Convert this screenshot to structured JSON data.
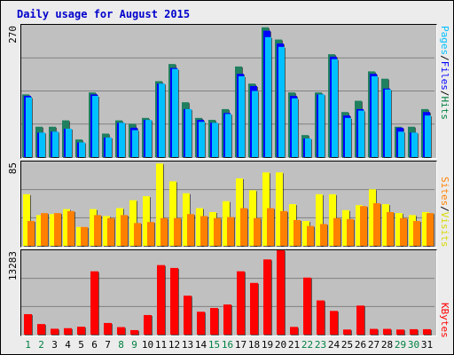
{
  "title": "Daily usage for August 2015",
  "colors": {
    "pages": "#00c0ff",
    "pages_dark": "#0060a0",
    "files": "#0000ff",
    "hits": "#008040",
    "hits_bar": "#1f8060",
    "sites": "#ff8000",
    "visits": "#ffff00",
    "kbytes": "#ff0000",
    "weekend_day": "#008040",
    "weekday": "#000000",
    "panel_bg": "#c0c0c0",
    "grid": "#808080"
  },
  "legend": {
    "hits_panel": [
      "Pages",
      "/",
      "Files",
      "/",
      "Hits"
    ],
    "visits_panel": [
      "Sites",
      "/",
      "Visits"
    ],
    "kbytes_panel": [
      "KBytes"
    ]
  },
  "chart_data": [
    {
      "type": "bar",
      "title": "",
      "ymax_label": "270",
      "ylim": [
        0,
        270
      ],
      "grid": true,
      "categories": [
        "1",
        "2",
        "3",
        "4",
        "5",
        "6",
        "7",
        "8",
        "9",
        "10",
        "11",
        "12",
        "13",
        "14",
        "15",
        "16",
        "17",
        "18",
        "19",
        "20",
        "21",
        "22",
        "23",
        "24",
        "25",
        "26",
        "27",
        "28",
        "29",
        "30",
        "31"
      ],
      "series": [
        {
          "name": "Hits",
          "values": [
            128,
            62,
            62,
            75,
            36,
            132,
            48,
            75,
            68,
            80,
            155,
            190,
            112,
            80,
            76,
            98,
            185,
            150,
            265,
            240,
            132,
            45,
            132,
            210,
            92,
            115,
            175,
            160,
            62,
            62,
            98
          ]
        },
        {
          "name": "Files",
          "values": [
            125,
            50,
            52,
            58,
            30,
            128,
            40,
            70,
            60,
            76,
            150,
            182,
            98,
            76,
            70,
            90,
            170,
            145,
            258,
            232,
            125,
            38,
            128,
            205,
            85,
            98,
            170,
            140,
            60,
            50,
            92
          ]
        },
        {
          "name": "Pages",
          "values": [
            122,
            50,
            52,
            58,
            30,
            125,
            40,
            70,
            55,
            76,
            150,
            180,
            98,
            72,
            70,
            88,
            165,
            135,
            245,
            225,
            120,
            38,
            128,
            200,
            80,
            95,
            165,
            138,
            52,
            50,
            85
          ]
        }
      ]
    },
    {
      "type": "bar",
      "title": "",
      "ymax_label": "85",
      "ylim": [
        0,
        85
      ],
      "grid": true,
      "categories": [
        "1",
        "2",
        "3",
        "4",
        "5",
        "6",
        "7",
        "8",
        "9",
        "10",
        "11",
        "12",
        "13",
        "14",
        "15",
        "16",
        "17",
        "18",
        "19",
        "20",
        "21",
        "22",
        "23",
        "24",
        "25",
        "26",
        "27",
        "28",
        "29",
        "30",
        "31"
      ],
      "series": [
        {
          "name": "Visits",
          "values": [
            52,
            31,
            32,
            37,
            19,
            37,
            30,
            38,
            46,
            50,
            83,
            65,
            53,
            38,
            34,
            45,
            68,
            56,
            74,
            74,
            42,
            25,
            52,
            52,
            36,
            41,
            57,
            42,
            33,
            31,
            34
          ]
        },
        {
          "name": "Sites",
          "values": [
            25,
            33,
            33,
            35,
            19,
            31,
            28,
            31,
            23,
            24,
            28,
            28,
            32,
            30,
            28,
            29,
            38,
            28,
            38,
            35,
            26,
            20,
            22,
            28,
            27,
            40,
            43,
            34,
            28,
            25,
            33
          ]
        }
      ]
    },
    {
      "type": "bar",
      "title": "",
      "ymax_label": "13283",
      "ylim": [
        0,
        13283
      ],
      "grid": true,
      "categories": [
        "1",
        "2",
        "3",
        "4",
        "5",
        "6",
        "7",
        "8",
        "9",
        "10",
        "11",
        "12",
        "13",
        "14",
        "15",
        "16",
        "17",
        "18",
        "19",
        "20",
        "21",
        "22",
        "23",
        "24",
        "25",
        "26",
        "27",
        "28",
        "29",
        "30",
        "31"
      ],
      "series": [
        {
          "name": "KBytes",
          "values": [
            3220,
            1660,
            920,
            1010,
            1240,
            9970,
            1830,
            1180,
            710,
            3080,
            10950,
            10500,
            6130,
            3600,
            4190,
            4740,
            9970,
            8140,
            11840,
            13283,
            1210,
            8980,
            5380,
            3730,
            800,
            4570,
            900,
            900,
            800,
            850,
            850
          ]
        }
      ]
    }
  ]
}
